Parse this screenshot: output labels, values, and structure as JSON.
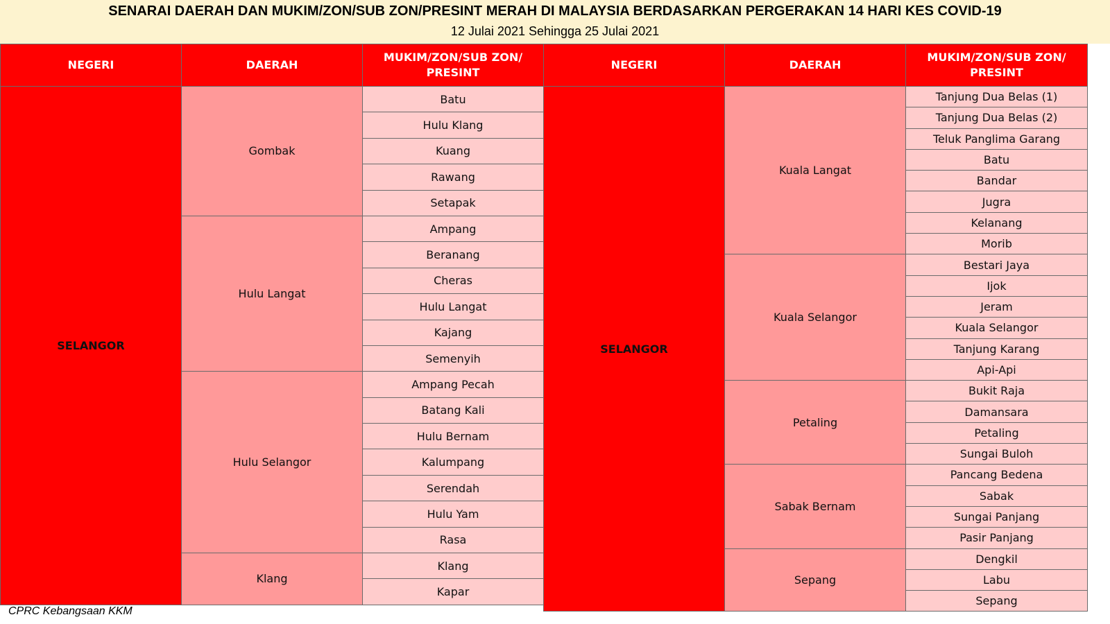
{
  "title": "SENARAI DAERAH DAN MUKIM/ZON/SUB ZON/PRESINT MERAH DI MALAYSIA BERDASARKAN PERGERAKAN 14 HARI KES COVID-19",
  "subtitle": "12 Julai 2021 Sehingga 25 Julai 2021",
  "headers": {
    "negeri": "NEGERI",
    "daerah": "DAERAH",
    "mukim": "MUKIM/ZON/SUB ZON/ PRESINT"
  },
  "colors": {
    "header_bg": "#ff0000",
    "negeri_bg": "#ff0000",
    "daerah_bg": "#ff9999",
    "mukim_bg": "#ffcccc",
    "banner_bg": "#fdf3cf"
  },
  "left": {
    "negeri": "SELANGOR",
    "districts": [
      {
        "name": "Gombak",
        "mukims": [
          "Batu",
          "Hulu Klang",
          "Kuang",
          "Rawang",
          "Setapak"
        ]
      },
      {
        "name": "Hulu Langat",
        "mukims": [
          "Ampang",
          "Beranang",
          "Cheras",
          "Hulu Langat",
          "Kajang",
          "Semenyih"
        ]
      },
      {
        "name": "Hulu Selangor",
        "mukims": [
          "Ampang Pecah",
          "Batang Kali",
          "Hulu Bernam",
          "Kalumpang",
          "Serendah",
          "Hulu Yam",
          "Rasa"
        ]
      },
      {
        "name": "Klang",
        "mukims": [
          "Klang",
          "Kapar"
        ]
      }
    ]
  },
  "right": {
    "negeri": "SELANGOR",
    "districts": [
      {
        "name": "Kuala Langat",
        "mukims": [
          "Tanjung Dua Belas (1)",
          "Tanjung Dua Belas (2)",
          "Teluk Panglima Garang",
          "Batu",
          "Bandar",
          "Jugra",
          "Kelanang",
          "Morib"
        ]
      },
      {
        "name": "Kuala Selangor",
        "mukims": [
          "Bestari Jaya",
          "Ijok",
          "Jeram",
          "Kuala Selangor",
          "Tanjung Karang",
          "Api-Api"
        ]
      },
      {
        "name": "Petaling",
        "mukims": [
          "Bukit Raja",
          "Damansara",
          "Petaling",
          "Sungai Buloh"
        ]
      },
      {
        "name": "Sabak Bernam",
        "mukims": [
          "Pancang Bedena",
          "Sabak",
          "Sungai Panjang",
          "Pasir Panjang"
        ]
      },
      {
        "name": "Sepang",
        "mukims": [
          "Dengkil",
          "Labu",
          "Sepang"
        ]
      }
    ]
  },
  "footer": "CPRC Kebangsaan KKM"
}
